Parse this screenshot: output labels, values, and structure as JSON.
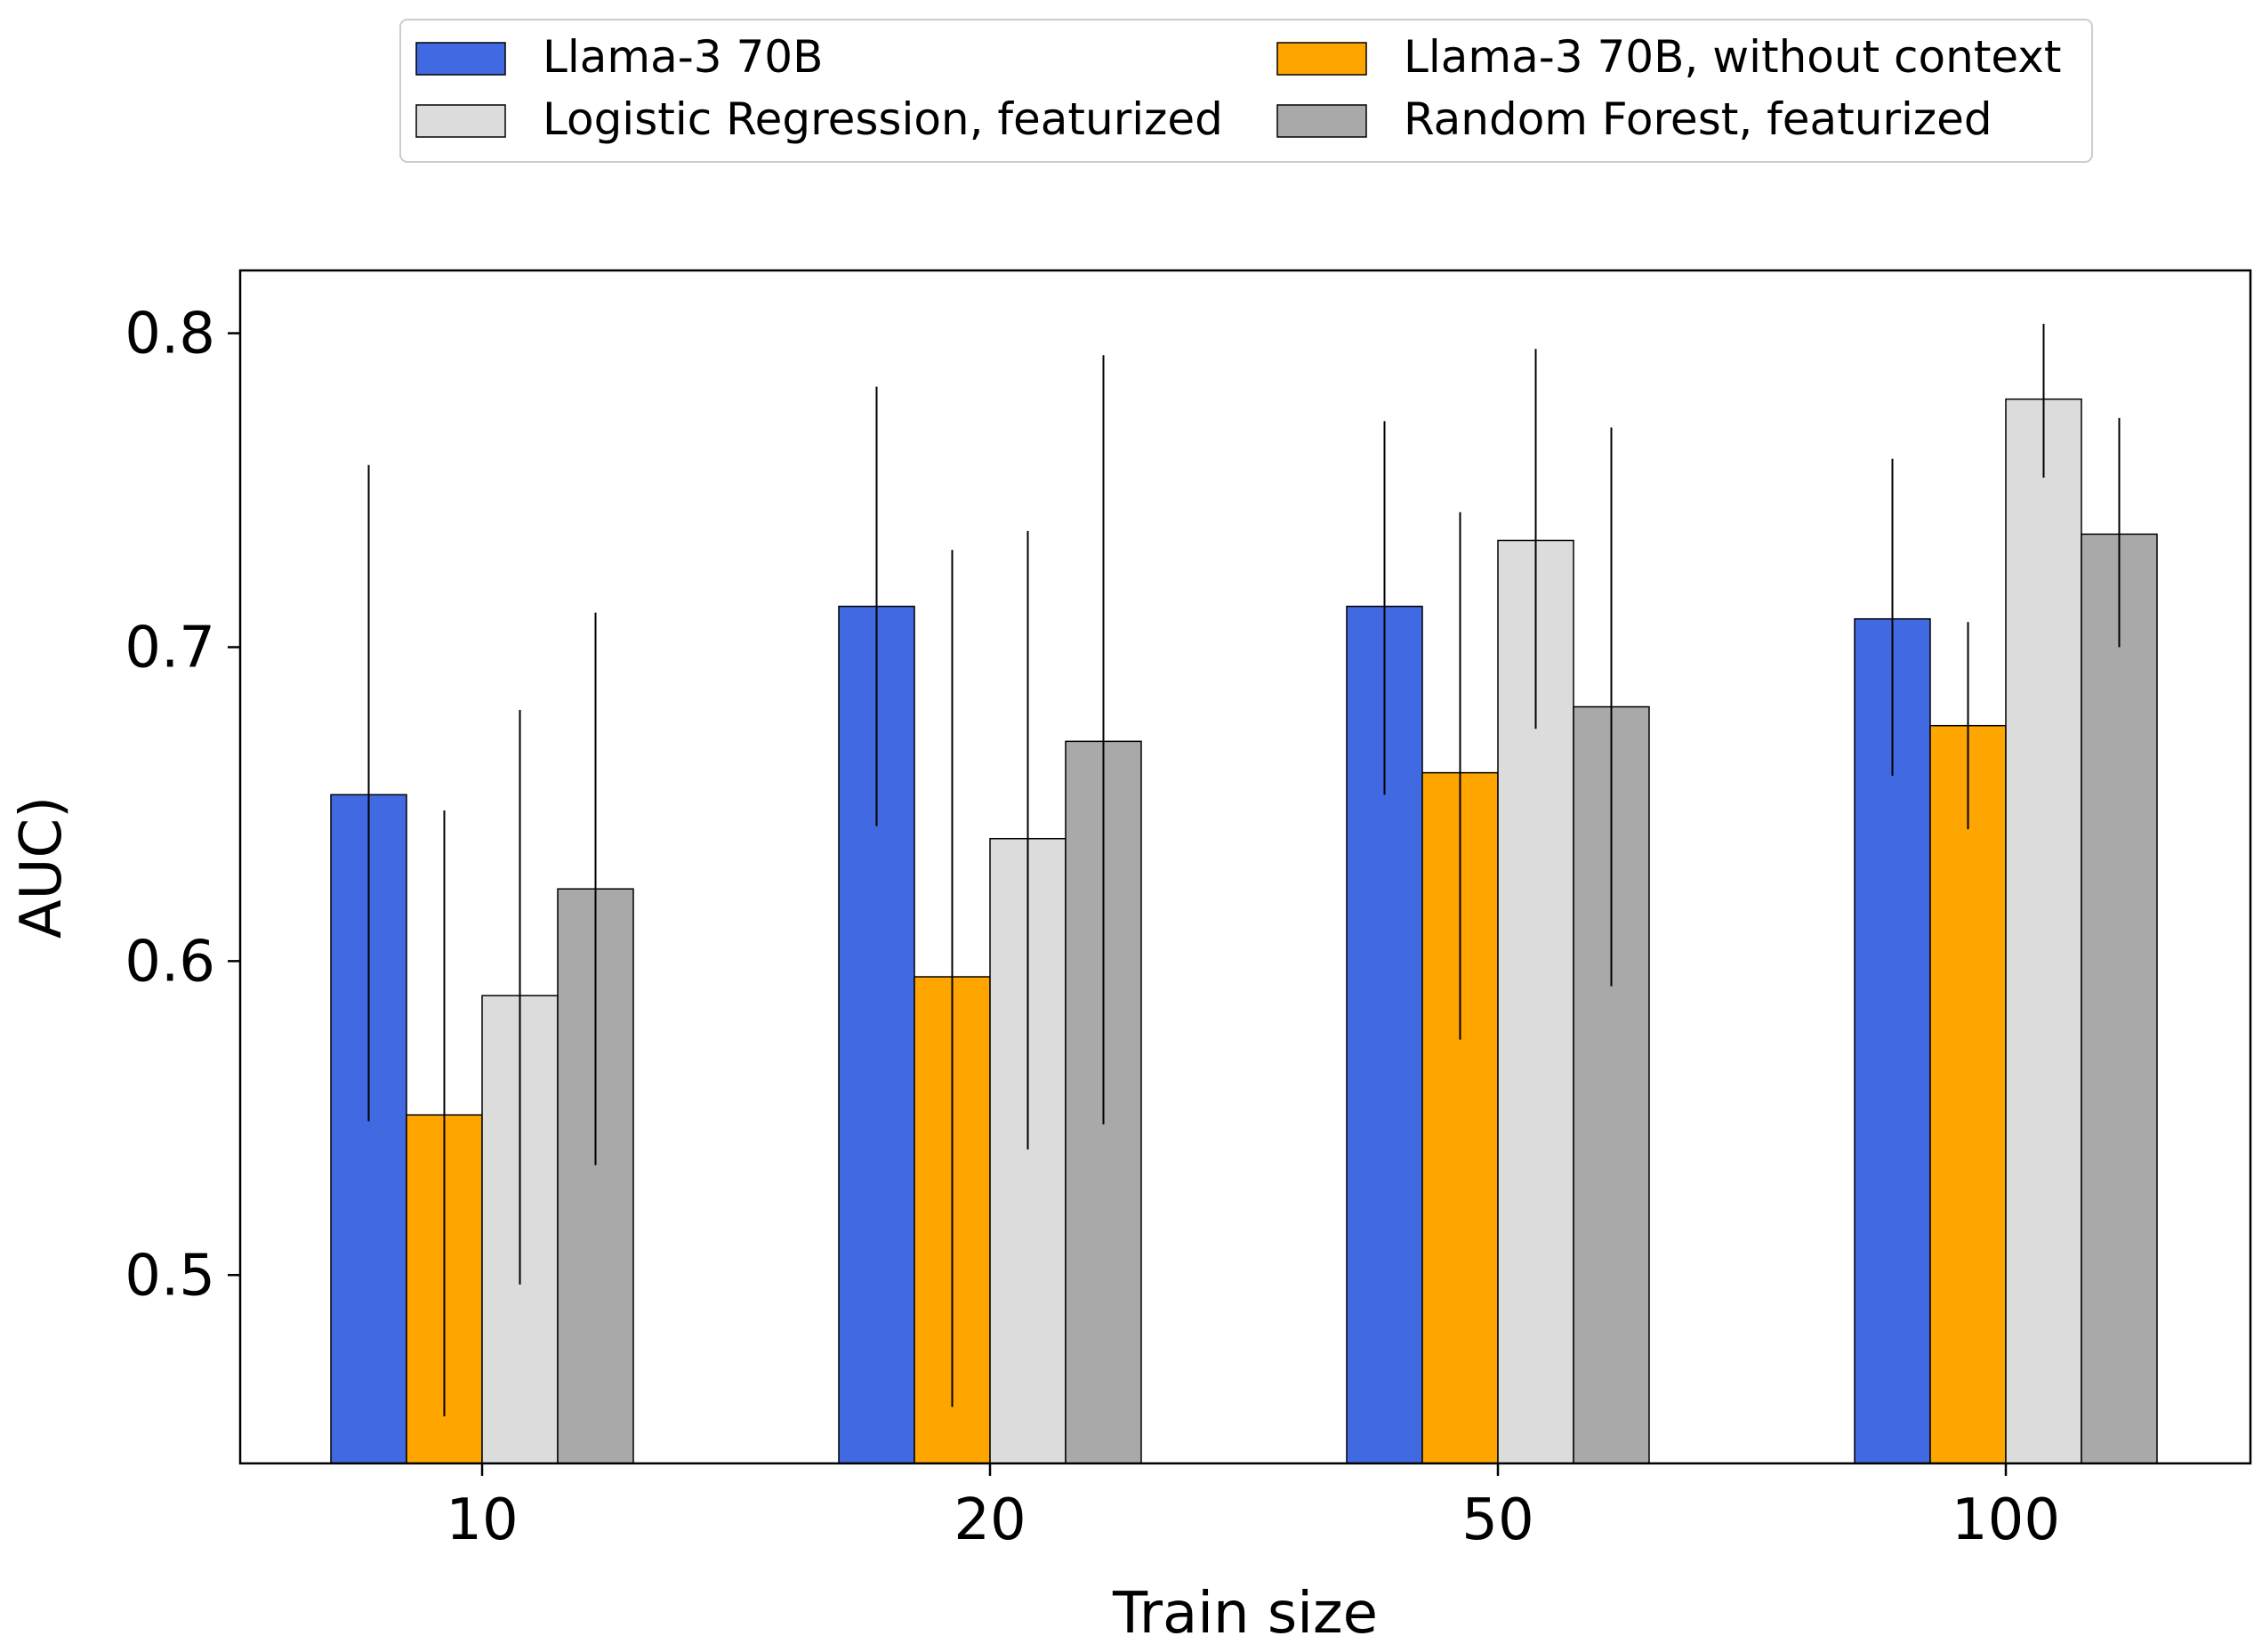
{
  "chart_data": {
    "type": "bar",
    "title": "",
    "xlabel": "Train size",
    "ylabel": "AUC)",
    "categories": [
      "10",
      "20",
      "50",
      "100"
    ],
    "ylim": [
      0.44,
      0.82
    ],
    "yticks": [
      0.5,
      0.6,
      0.7,
      0.8
    ],
    "ytick_labels": [
      "0.5",
      "0.6",
      "0.7",
      "0.8"
    ],
    "grid": false,
    "legend_position": "top-center",
    "legend_columns": 2,
    "series": [
      {
        "name": "Llama-3 70B",
        "color": "#4169e1",
        "values": [
          0.653,
          0.713,
          0.713,
          0.709
        ],
        "error_low": [
          0.549,
          0.643,
          0.653,
          0.659
        ],
        "error_high": [
          0.758,
          0.783,
          0.772,
          0.76
        ]
      },
      {
        "name": "Llama-3 70B,  without context",
        "color": "#ffa500",
        "values": [
          0.551,
          0.595,
          0.66,
          0.675
        ],
        "error_low": [
          0.455,
          0.458,
          0.575,
          0.642
        ],
        "error_high": [
          0.648,
          0.731,
          0.743,
          0.708
        ]
      },
      {
        "name": "Logistic Regression,  featurized",
        "color": "#dcdcdc",
        "values": [
          0.589,
          0.639,
          0.734,
          0.779
        ],
        "error_low": [
          0.497,
          0.54,
          0.674,
          0.754
        ],
        "error_high": [
          0.68,
          0.737,
          0.795,
          0.803
        ]
      },
      {
        "name": "Random Forest,  featurized",
        "color": "#a9a9a9",
        "values": [
          0.623,
          0.67,
          0.681,
          0.736
        ],
        "error_low": [
          0.535,
          0.548,
          0.592,
          0.7
        ],
        "error_high": [
          0.711,
          0.793,
          0.77,
          0.773
        ]
      }
    ]
  }
}
